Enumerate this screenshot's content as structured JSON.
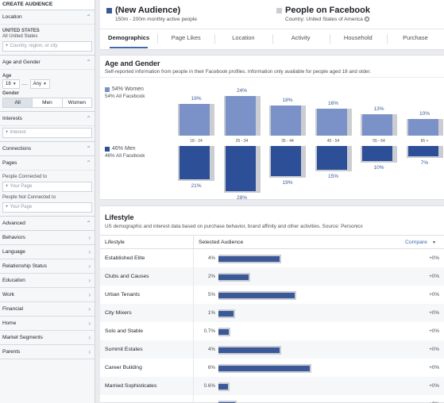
{
  "sidebar": {
    "title": "CREATE AUDIENCE",
    "location": {
      "header": "Location",
      "country": "UNITED STATES",
      "scope": "All United States",
      "placeholder": "Country, region, or city"
    },
    "age_gender": {
      "header": "Age and Gender",
      "age_label": "Age",
      "age_min": "18",
      "age_max": "Any",
      "age_sep": "—",
      "gender_label": "Gender",
      "gender_options": [
        "All",
        "Men",
        "Women"
      ],
      "gender_selected": "All"
    },
    "interests": {
      "header": "Interests",
      "placeholder": "Interest"
    },
    "connections": {
      "header": "Connections"
    },
    "pages": {
      "header": "Pages",
      "connected_label": "People Connected to",
      "connected_placeholder": "Your Page",
      "not_connected_label": "People Not Connected to",
      "not_connected_placeholder": "Your Page"
    },
    "advanced": "Advanced",
    "collapsed_items": [
      "Behaviors",
      "Language",
      "Relationship Status",
      "Education",
      "Work",
      "Financial",
      "Home",
      "Market Segments",
      "Parents"
    ]
  },
  "header": {
    "audience_title": "(New Audience)",
    "audience_sub": "150m - 200m monthly active people",
    "population_title": "People on Facebook",
    "population_sub": "Country: United States of America",
    "tabs": [
      "Demographics",
      "Page Likes",
      "Location",
      "Activity",
      "Household",
      "Purchase"
    ],
    "active_tab": "Demographics"
  },
  "age_gender": {
    "title": "Age and Gender",
    "subtitle": "Self-reported information from people in their Facebook profiles. Information only available for people aged 18 and older.",
    "women_legend": "54% Women",
    "women_sub": "54% All Facebook",
    "men_legend": "46% Men",
    "men_sub": "46% All Facebook"
  },
  "lifestyle": {
    "title": "Lifestyle",
    "subtitle": "US demographic and interest data based on purchase behavior, brand affinity and other activities. Source: Personicx",
    "col_lifestyle": "Lifestyle",
    "col_selected": "Selected Audience",
    "col_compare": "Compare",
    "rows": [
      {
        "name": "Established Elite",
        "pct_label": "4%",
        "value": 4,
        "compare": "+0%"
      },
      {
        "name": "Clubs and Causes",
        "pct_label": "2%",
        "value": 2,
        "compare": "+0%"
      },
      {
        "name": "Urban Tenants",
        "pct_label": "5%",
        "value": 5,
        "compare": "+0%"
      },
      {
        "name": "City Mixers",
        "pct_label": "1%",
        "value": 1,
        "compare": "+0%"
      },
      {
        "name": "Solo and Stable",
        "pct_label": "0.7%",
        "value": 0.7,
        "compare": "+0%"
      },
      {
        "name": "Summit Estates",
        "pct_label": "4%",
        "value": 4,
        "compare": "+0%"
      },
      {
        "name": "Career Building",
        "pct_label": "6%",
        "value": 6,
        "compare": "+0%"
      },
      {
        "name": "Married Sophisticates",
        "pct_label": "0.6%",
        "value": 0.6,
        "compare": "+0%"
      },
      {
        "name": "",
        "pct_label": "",
        "value": 1.1,
        "compare": "+0%"
      }
    ]
  },
  "colors": {
    "audience": "#3b5998",
    "population": "#cbcdd2",
    "women": "#7b92c8",
    "men": "#2d4f98",
    "link": "#4267b2"
  },
  "chart_data": {
    "type": "bar",
    "categories": [
      "18 - 24",
      "25 - 34",
      "35 - 44",
      "45 - 54",
      "55 - 64",
      "65 +"
    ],
    "series": [
      {
        "name": "Women",
        "values": [
          19,
          24,
          18,
          16,
          13,
          10
        ]
      },
      {
        "name": "Men",
        "values": [
          21,
          28,
          19,
          15,
          10,
          7
        ]
      }
    ],
    "women_labels": [
      "19%",
      "24%",
      "18%",
      "16%",
      "13%",
      "10%"
    ],
    "men_labels": [
      "21%",
      "28%",
      "19%",
      "15%",
      "10%",
      "7%"
    ],
    "title": "Age and Gender"
  }
}
